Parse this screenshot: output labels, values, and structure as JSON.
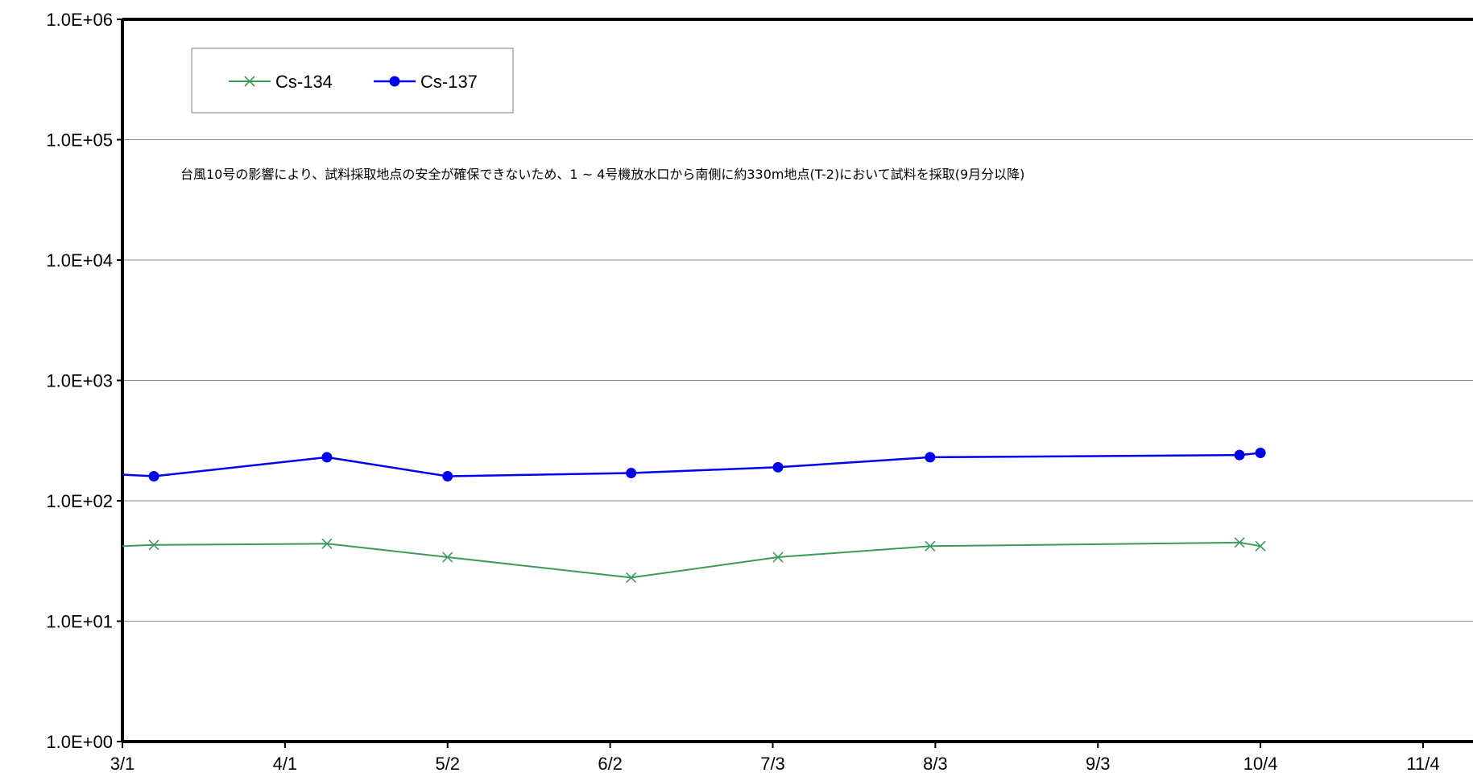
{
  "chart_data": {
    "type": "line",
    "yscale": "log",
    "ylim": [
      1,
      1000000
    ],
    "y_ticks": [
      1,
      10,
      100,
      1000,
      10000,
      100000,
      1000000
    ],
    "y_tick_labels": [
      "1.0E+00",
      "1.0E+01",
      "1.0E+02",
      "1.0E+03",
      "1.0E+04",
      "1.0E+05",
      "1.0E+06"
    ],
    "x_ticks": [
      "3/1",
      "4/1",
      "5/2",
      "6/2",
      "7/3",
      "8/3",
      "9/3",
      "10/4",
      "11/4"
    ],
    "xlim": [
      "3/1",
      "11/4"
    ],
    "grid": "horizontal",
    "legend_position": "top-left",
    "annotation": "台風10号の影響により、試料採取地点の安全が確保できないため、1 ~ 4号機放水口から南側に約330m地点(T-2)において試料を採取(9月分以降)",
    "series": [
      {
        "name": "Cs-134",
        "marker": "x",
        "color": "#3a9a5b",
        "points": [
          {
            "x": "3/1",
            "y": 42
          },
          {
            "x": "3/7",
            "y": 43
          },
          {
            "x": "4/9",
            "y": 44
          },
          {
            "x": "5/2",
            "y": 34
          },
          {
            "x": "6/6",
            "y": 23
          },
          {
            "x": "7/4",
            "y": 34
          },
          {
            "x": "8/2",
            "y": 42
          },
          {
            "x": "9/30",
            "y": 45
          },
          {
            "x": "10/4",
            "y": 42
          }
        ]
      },
      {
        "name": "Cs-137",
        "marker": "circle",
        "color": "#0000ee",
        "points": [
          {
            "x": "3/1",
            "y": 165
          },
          {
            "x": "3/7",
            "y": 160
          },
          {
            "x": "4/9",
            "y": 230
          },
          {
            "x": "5/2",
            "y": 160
          },
          {
            "x": "6/6",
            "y": 170
          },
          {
            "x": "7/4",
            "y": 190
          },
          {
            "x": "8/2",
            "y": 230
          },
          {
            "x": "9/30",
            "y": 240
          },
          {
            "x": "10/4",
            "y": 250
          }
        ]
      }
    ]
  }
}
